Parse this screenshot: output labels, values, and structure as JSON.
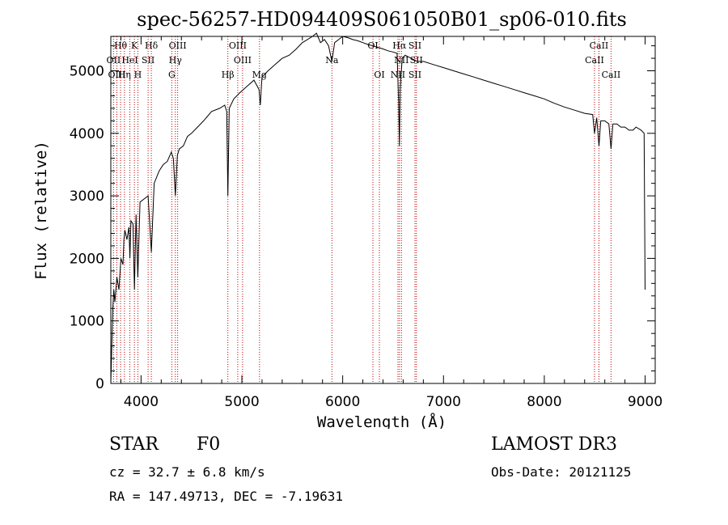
{
  "chart_data": {
    "type": "line",
    "title": "spec-56257-HD094409S061050B01_sp06-010.fits",
    "xlabel": "Wavelength (Å)",
    "ylabel": "Flux (relative)",
    "xlim": [
      3700,
      9100
    ],
    "ylim": [
      0,
      5550
    ],
    "xticks": [
      4000,
      5000,
      6000,
      7000,
      8000,
      9000
    ],
    "yticks": [
      0,
      1000,
      2000,
      3000,
      4000,
      5000
    ],
    "x_minor_step": 200,
    "y_minor_step": 200,
    "series": [
      {
        "name": "spectrum",
        "x": [
          3700,
          3710,
          3720,
          3730,
          3740,
          3760,
          3780,
          3800,
          3820,
          3830,
          3840,
          3860,
          3880,
          3889,
          3900,
          3920,
          3934,
          3950,
          3968,
          3990,
          4030,
          4070,
          4102,
          4130,
          4180,
          4220,
          4260,
          4300,
          4320,
          4340,
          4360,
          4380,
          4420,
          4460,
          4500,
          4560,
          4620,
          4700,
          4780,
          4830,
          4850,
          4861,
          4875,
          4920,
          4980,
          5050,
          5120,
          5170,
          5183,
          5200,
          5260,
          5330,
          5400,
          5470,
          5540,
          5600,
          5650,
          5700,
          5740,
          5780,
          5820,
          5860,
          5893,
          5920,
          5960,
          6000,
          6050,
          6100,
          6150,
          6200,
          6250,
          6300,
          6340,
          6400,
          6450,
          6500,
          6540,
          6555,
          6563,
          6570,
          6590,
          6620,
          6680,
          6740,
          6800,
          6900,
          7000,
          7100,
          7200,
          7300,
          7400,
          7500,
          7600,
          7700,
          7800,
          7900,
          8000,
          8100,
          8200,
          8300,
          8400,
          8480,
          8498,
          8520,
          8542,
          8560,
          8600,
          8640,
          8662,
          8680,
          8720,
          8760,
          8800,
          8840,
          8880,
          8910,
          8960,
          8990,
          9000
        ],
        "y": [
          0,
          600,
          1200,
          1500,
          1300,
          1700,
          1500,
          2000,
          1900,
          2300,
          2450,
          2300,
          2500,
          2000,
          2600,
          2550,
          1500,
          2700,
          1700,
          2900,
          2950,
          3000,
          2100,
          3200,
          3400,
          3500,
          3550,
          3700,
          3600,
          3000,
          3650,
          3750,
          3800,
          3950,
          4000,
          4100,
          4200,
          4350,
          4400,
          4450,
          4350,
          3000,
          4400,
          4550,
          4650,
          4750,
          4850,
          4700,
          4450,
          4900,
          5000,
          5100,
          5200,
          5250,
          5350,
          5450,
          5500,
          5550,
          5600,
          5450,
          5500,
          5400,
          5150,
          5450,
          5500,
          5550,
          5530,
          5500,
          5480,
          5450,
          5420,
          5400,
          5380,
          5350,
          5320,
          5300,
          5280,
          4500,
          3800,
          4700,
          5200,
          5250,
          5200,
          5150,
          5150,
          5100,
          5050,
          5000,
          4950,
          4900,
          4850,
          4800,
          4750,
          4700,
          4650,
          4600,
          4550,
          4480,
          4420,
          4370,
          4320,
          4300,
          4000,
          4250,
          3800,
          4200,
          4200,
          4150,
          3750,
          4150,
          4150,
          4100,
          4100,
          4050,
          4050,
          4100,
          4050,
          4000,
          1500
        ]
      }
    ],
    "lines_top": [
      {
        "label": "Hθ",
        "x": 3797
      },
      {
        "label": "K",
        "x": 3934
      },
      {
        "label": "Hδ",
        "x": 4102
      },
      {
        "label": "OIII",
        "x": 4363
      },
      {
        "label": "OIII",
        "x": 4959
      },
      {
        "label": "OI",
        "x": 6300
      },
      {
        "label": "Hα",
        "x": 6563
      },
      {
        "label": "SII",
        "x": 6717
      },
      {
        "label": "CaII",
        "x": 8542
      }
    ],
    "lines_second": [
      {
        "label": "OII",
        "x": 3727
      },
      {
        "label": "HeI",
        "x": 3889
      },
      {
        "label": "SII",
        "x": 4070
      },
      {
        "label": "Hγ",
        "x": 4340
      },
      {
        "label": "OIII",
        "x": 5007
      },
      {
        "label": "Na",
        "x": 5893
      },
      {
        "label": "NII",
        "x": 6583
      },
      {
        "label": "SII",
        "x": 6731
      },
      {
        "label": "CaII",
        "x": 8498
      }
    ],
    "lines_third": [
      {
        "label": "OIII",
        "x": 3760
      },
      {
        "label": "Hη",
        "x": 3835
      },
      {
        "label": "H",
        "x": 3968
      },
      {
        "label": "G",
        "x": 4305
      },
      {
        "label": "Hβ",
        "x": 4861
      },
      {
        "label": "Mg",
        "x": 5175
      },
      {
        "label": "OI",
        "x": 6364
      },
      {
        "label": "NII",
        "x": 6548
      },
      {
        "label": "SII",
        "x": 6717
      },
      {
        "label": "CaII",
        "x": 8662
      }
    ]
  },
  "info": {
    "class": "STAR",
    "subclass": "F0",
    "survey": "LAMOST DR3",
    "cz": "cz = 32.7 ± 6.8 km/s",
    "obs_date": "Obs-Date: 20121125",
    "coords": "RA = 147.49713, DEC =  -7.19631"
  }
}
